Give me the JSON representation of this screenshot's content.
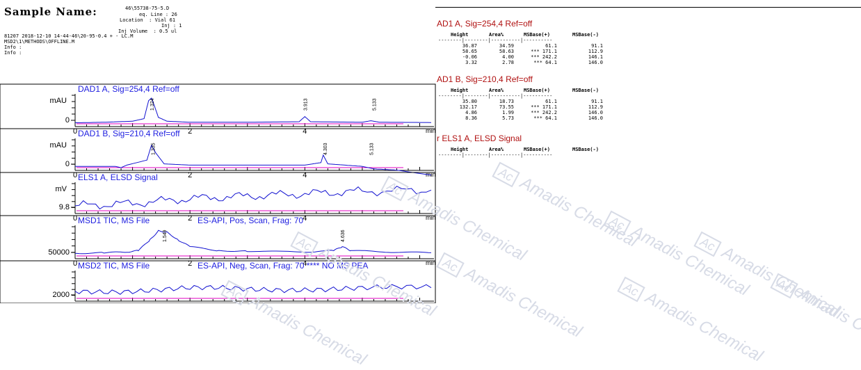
{
  "header": {
    "sample_label": "Sample Name:",
    "sample_name": "46\\55738-75-5.D",
    "seq_line": "eq. Line : 26",
    "location": "Location  : Vial 61",
    "inj": "Inj : 1",
    "inj_volume": "Inj Volume  : 0.5 ul",
    "acq_line": "81207 2018-12-10 14-44-46\\20-95-0.4 + - LC.M",
    "method_line": "MSD2\\1\\METHODS\\OFFLINE.M",
    "info1": "Info :",
    "info2": "Info :"
  },
  "chart_data": [
    {
      "type": "line",
      "title": "DAD1 A, Sig=254,4 Ref=off",
      "ylabel": "mAU",
      "xlabel": "min",
      "yticks": [
        "0"
      ],
      "xticks": [
        "0",
        "2",
        "4"
      ],
      "xlim": [
        0,
        6.2
      ],
      "peak_labels": [
        {
          "x": 1.33,
          "text": "1.324"
        },
        {
          "x": 4.0,
          "text": "3.913"
        },
        {
          "x": 5.2,
          "text": "5.133"
        }
      ],
      "series": [
        {
          "values": [
            [
              0,
              0.04
            ],
            [
              0.5,
              0.06
            ],
            [
              1.0,
              0.1
            ],
            [
              1.2,
              0.2
            ],
            [
              1.28,
              0.9
            ],
            [
              1.33,
              1.0
            ],
            [
              1.38,
              0.7
            ],
            [
              1.45,
              0.25
            ],
            [
              1.6,
              0.1
            ],
            [
              2.0,
              0.06
            ],
            [
              3.0,
              0.06
            ],
            [
              3.9,
              0.08
            ],
            [
              4.0,
              0.28
            ],
            [
              4.1,
              0.08
            ],
            [
              5.0,
              0.06
            ],
            [
              5.15,
              0.12
            ],
            [
              5.3,
              0.06
            ],
            [
              6.2,
              0.05
            ]
          ]
        }
      ]
    },
    {
      "type": "line",
      "title": "DAD1 B, Sig=210,4 Ref=off",
      "ylabel": "mAU",
      "xlabel": "min",
      "yticks": [
        "0"
      ],
      "xticks": [
        "0",
        "2",
        "4"
      ],
      "xlim": [
        0,
        6.2
      ],
      "peak_labels": [
        {
          "x": 1.35,
          "text": "1.335"
        },
        {
          "x": 4.35,
          "text": "4.303"
        },
        {
          "x": 5.15,
          "text": "5.133"
        }
      ],
      "series": [
        {
          "values": [
            [
              0,
              0.05
            ],
            [
              0.7,
              0.05
            ],
            [
              0.8,
              0.0
            ],
            [
              0.9,
              0.1
            ],
            [
              1.25,
              0.3
            ],
            [
              1.33,
              0.9
            ],
            [
              1.4,
              0.6
            ],
            [
              1.55,
              0.15
            ],
            [
              2.0,
              0.1
            ],
            [
              3.0,
              0.1
            ],
            [
              4.0,
              0.1
            ],
            [
              4.28,
              0.2
            ],
            [
              4.32,
              0.5
            ],
            [
              4.4,
              0.15
            ],
            [
              5.0,
              0.05
            ],
            [
              5.2,
              -0.05
            ],
            [
              5.6,
              -0.1
            ],
            [
              6.2,
              -0.3
            ]
          ]
        }
      ]
    },
    {
      "type": "line",
      "title": "ELS1 A, ELSD Signal",
      "ylabel": "mV",
      "xlabel": "min",
      "yticks": [
        "9.8"
      ],
      "xticks": [
        "0",
        "2",
        "4"
      ],
      "xlim": [
        0,
        6.2
      ],
      "series": [
        {
          "values": [
            [
              0,
              0.2
            ],
            [
              1,
              0.3
            ],
            [
              2,
              0.5
            ],
            [
              3,
              0.6
            ],
            [
              4,
              0.7
            ],
            [
              5,
              0.8
            ],
            [
              6.2,
              0.85
            ]
          ]
        }
      ]
    },
    {
      "type": "line",
      "title": "MSD1 TIC, MS File",
      "subtitle": "ES-API, Pos, Scan, Frag: 70",
      "ylabel": "",
      "xlabel": "min",
      "yticks": [
        "50000"
      ],
      "xticks": [
        "0",
        "2",
        "4"
      ],
      "xlim": [
        0,
        6.2
      ],
      "peak_labels": [
        {
          "x": 1.55,
          "text": "1.549"
        },
        {
          "x": 4.65,
          "text": "4.636"
        }
      ],
      "series": [
        {
          "values": [
            [
              0,
              0.1
            ],
            [
              0.5,
              0.12
            ],
            [
              0.9,
              0.15
            ],
            [
              1.1,
              0.2
            ],
            [
              1.3,
              0.6
            ],
            [
              1.45,
              0.95
            ],
            [
              1.6,
              0.9
            ],
            [
              1.8,
              0.6
            ],
            [
              2.0,
              0.35
            ],
            [
              2.5,
              0.2
            ],
            [
              3.0,
              0.18
            ],
            [
              4.0,
              0.15
            ],
            [
              4.5,
              0.2
            ],
            [
              4.65,
              0.35
            ],
            [
              4.8,
              0.2
            ],
            [
              5.5,
              0.15
            ],
            [
              6.2,
              0.12
            ]
          ]
        }
      ]
    },
    {
      "type": "line",
      "title": "MSD2 TIC, MS File",
      "subtitle": "ES-API, Neg, Scan, Frag: 70 **** NO MS PEA",
      "ylabel": "",
      "xlabel": "min",
      "yticks": [
        "2000"
      ],
      "xticks": [
        "0",
        "2",
        "4"
      ],
      "xlim": [
        0,
        6.2
      ],
      "series": [
        {
          "values": [
            [
              0,
              0.3
            ],
            [
              1,
              0.35
            ],
            [
              2,
              0.4
            ],
            [
              3,
              0.38
            ],
            [
              4,
              0.42
            ],
            [
              5,
              0.4
            ],
            [
              6.2,
              0.45
            ]
          ]
        }
      ]
    }
  ],
  "tables": [
    {
      "title": "AD1 A, Sig=254,4 Ref=off",
      "columns": [
        "Height",
        "Area%",
        "MSBase(+)",
        "MSBase(-)"
      ],
      "divider": "--------|--------|----------|----------",
      "rows": [
        [
          "36.87",
          "34.59",
          "61.1",
          "91.1"
        ],
        [
          "58.65",
          "58.63",
          "*** 171.1",
          "112.9"
        ],
        [
          "-0.06",
          "4.00",
          "*** 242.2",
          "146.1"
        ],
        [
          "3.32",
          "2.78",
          "*** 64.1",
          "146.0"
        ]
      ]
    },
    {
      "title": "AD1 B, Sig=210,4 Ref=off",
      "columns": [
        "Height",
        "Area%",
        "MSBase(+)",
        "MSBase(-)"
      ],
      "divider": "--------|--------|----------|----------",
      "rows": [
        [
          "35.80",
          "18.73",
          "61.1",
          "91.1"
        ],
        [
          "132.17",
          "73.55",
          "*** 171.1",
          "112.9"
        ],
        [
          "4.86",
          "1.99",
          "*** 242.2",
          "146.0"
        ],
        [
          "8.36",
          "5.73",
          "*** 64.1",
          "146.0"
        ]
      ]
    },
    {
      "title": "r ELS1 A, ELSD Signal",
      "columns": [
        "Height",
        "Area%",
        "MSBase(+)",
        "MSBase(-)"
      ],
      "divider": "--------|--------|----------|----------",
      "rows": []
    }
  ],
  "watermark": {
    "text": "Amadis Chemical",
    "logo": "Ac"
  },
  "colors": {
    "trace": "#1010d0",
    "baseline": "#e000c0",
    "title_blue": "#2020e0",
    "title_red": "#b01010"
  }
}
